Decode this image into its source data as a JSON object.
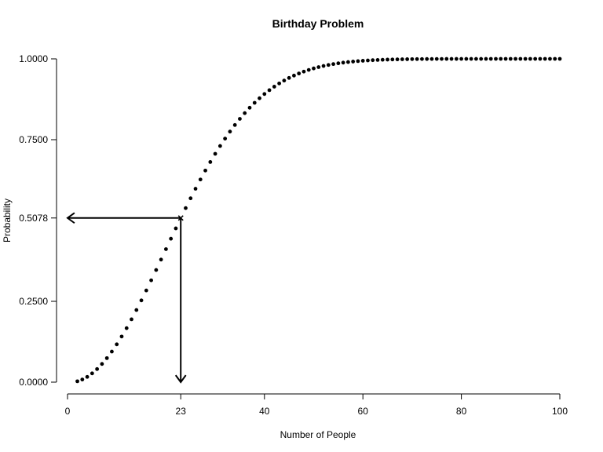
{
  "chart_data": {
    "type": "scatter",
    "title": "Birthday Problem",
    "xlabel": "Number of People",
    "ylabel": "Probability",
    "xlim": [
      0,
      100
    ],
    "ylim": [
      0,
      1
    ],
    "x_ticks": [
      0,
      23,
      40,
      60,
      80,
      100
    ],
    "x_tick_labels": [
      "0",
      "23",
      "40",
      "60",
      "80",
      "100"
    ],
    "y_ticks": [
      0,
      0.25,
      0.5078,
      0.75,
      1
    ],
    "y_tick_labels": [
      "0.0000",
      "0.2500",
      "0.5078",
      "0.7500",
      "1.0000"
    ],
    "series": [
      {
        "model": "birthday-collision",
        "n_min": 2,
        "n_max": 100,
        "days": 365
      }
    ],
    "highlight": {
      "x": 23,
      "y": 0.5078,
      "marker": "x"
    },
    "annotations": [
      {
        "type": "arrow",
        "from": [
          23,
          0.5078
        ],
        "to": [
          0,
          0.5078
        ]
      },
      {
        "type": "arrow",
        "from": [
          23,
          0.5078
        ],
        "to": [
          23,
          0
        ]
      }
    ],
    "grid": false,
    "point_color": "#000000"
  }
}
